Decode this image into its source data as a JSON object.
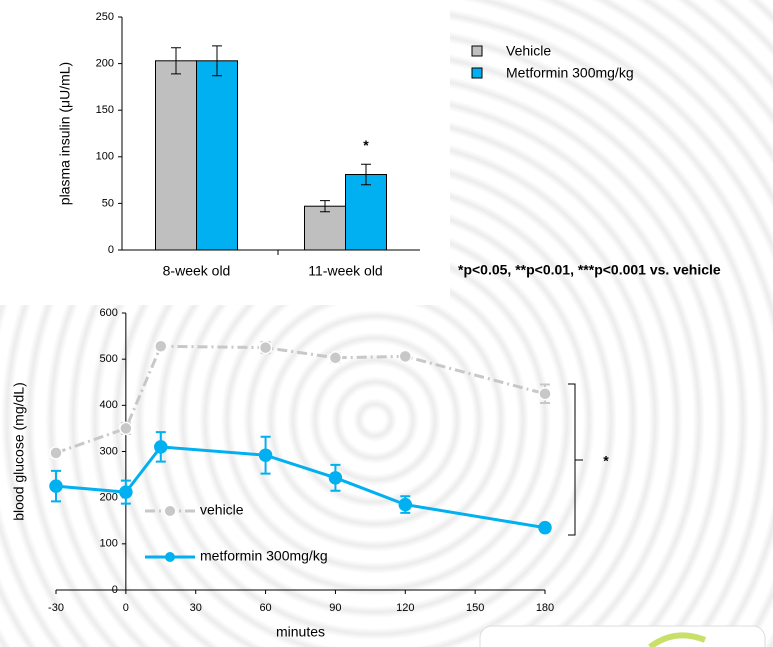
{
  "chart_data": [
    {
      "type": "bar",
      "ylabel": "plasma insulin (μU/mL)",
      "categories": [
        "8-week old",
        "11-week old"
      ],
      "series": [
        {
          "name": "Vehicle",
          "color": "#bfbfbf",
          "values": [
            203,
            47
          ],
          "errors": [
            14,
            6
          ]
        },
        {
          "name": "Metformin 300mg/kg",
          "color": "#00b0f0",
          "values": [
            203,
            81
          ],
          "errors": [
            16,
            11
          ]
        }
      ],
      "ylim": [
        0,
        250
      ],
      "yticks": [
        0,
        50,
        100,
        150,
        200,
        250
      ],
      "significance": "*",
      "note": "*p<0.05, **p<0.01, ***p<0.001 vs. vehicle"
    },
    {
      "type": "line",
      "xlabel": "minutes",
      "ylabel": "blood glucose (mg/dL)",
      "x": [
        -30,
        0,
        15,
        60,
        90,
        120,
        180
      ],
      "series": [
        {
          "name": "vehicle",
          "color": "#c8c8c8",
          "values": [
            297,
            350,
            528,
            525,
            503,
            506,
            425
          ],
          "errors": [
            5,
            12,
            8,
            12,
            10,
            8,
            20
          ]
        },
        {
          "name": "metformin 300mg/kg",
          "color": "#00b0f0",
          "values": [
            225,
            212,
            310,
            292,
            243,
            185,
            135
          ],
          "errors": [
            33,
            25,
            32,
            40,
            28,
            18,
            8
          ]
        }
      ],
      "xlim": [
        -30,
        180
      ],
      "xticks": [
        -30,
        0,
        30,
        60,
        90,
        120,
        150,
        180
      ],
      "ylim": [
        0,
        600
      ],
      "yticks": [
        0,
        100,
        200,
        300,
        400,
        500,
        600
      ],
      "significance": "*"
    }
  ]
}
